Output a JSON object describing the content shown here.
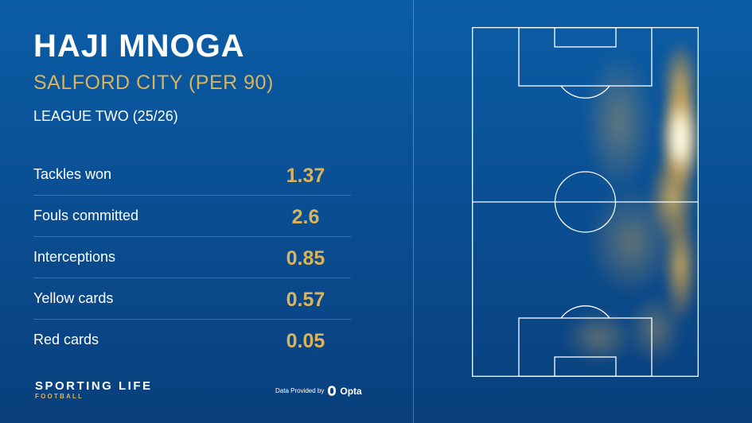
{
  "player": {
    "name": "HAJI MNOGA",
    "team": "SALFORD CITY (PER 90)",
    "league": "LEAGUE TWO (25/26)"
  },
  "stats": [
    {
      "label": "Tackles won",
      "value": "1.37"
    },
    {
      "label": "Fouls committed",
      "value": "2.6"
    },
    {
      "label": "Interceptions",
      "value": "0.85"
    },
    {
      "label": "Yellow cards",
      "value": "0.57"
    },
    {
      "label": "Red cards",
      "value": "0.05"
    }
  ],
  "branding": {
    "main": "SPORTING LIFE",
    "sub": "FOOTBALL"
  },
  "credit": {
    "text": "Data Provided by",
    "provider": "Opta",
    "icon": "opta-logo-icon"
  },
  "colors": {
    "accent_gold": "#d8b45e",
    "background_blue": "#0a4f94",
    "text_white": "#ffffff"
  }
}
